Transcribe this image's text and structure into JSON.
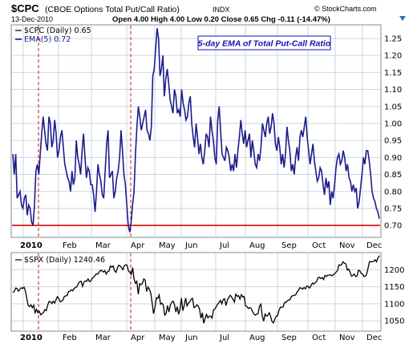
{
  "header": {
    "symbol": "$CPC",
    "name": "(CBOE Options Total Put/Call Ratio)",
    "exchange": "INDX",
    "date": "13-Dec-2010",
    "quote": "Open 4.00  High 4.00  Low 0.20  Close 0.65  Chg -0.11 (-14.47%)",
    "watermark": "© StockCharts.com"
  },
  "chart_data": [
    {
      "type": "line",
      "legend": [
        {
          "label": "$CPC (Daily) 0.65",
          "color": "#000000"
        },
        {
          "label": "EMA(5) 0.72",
          "color": "#1c1c8c"
        }
      ],
      "annotation": "5-day EMA of Total Put-Call Ratio",
      "ylim": [
        0.665,
        1.29
      ],
      "yticks": [
        "0.70",
        "0.75",
        "0.80",
        "0.85",
        "0.90",
        "0.95",
        "1.00",
        "1.05",
        "1.10",
        "1.15",
        "1.20",
        "1.25"
      ],
      "horizontal_line": 0.7,
      "series": [
        {
          "values": [
            0.91,
            0.85,
            0.91,
            0.78,
            0.79,
            0.8,
            0.76,
            0.75,
            0.78,
            0.79,
            0.73,
            0.76,
            0.75,
            0.71,
            0.7,
            0.76,
            0.86,
            0.88,
            0.85,
            0.91,
            0.97,
            1.02,
            0.98,
            0.94,
            0.92,
            1.02,
            1.0,
            0.93,
            0.95,
            1.01,
            0.97,
            0.9,
            0.92,
            0.96,
            0.98,
            0.93,
            0.88,
            0.86,
            0.84,
            0.83,
            0.8,
            0.86,
            0.82,
            0.84,
            0.95,
            0.9,
            0.88,
            0.85,
            0.92,
            0.97,
            0.9,
            0.84,
            0.87,
            0.86,
            0.82,
            0.82,
            0.79,
            0.74,
            0.8,
            0.88,
            0.85,
            0.83,
            0.79,
            0.78,
            0.86,
            0.94,
            0.98,
            0.84,
            0.85,
            0.86,
            0.78,
            0.8,
            0.84,
            0.86,
            0.9,
            0.98,
            0.92,
            0.85,
            0.82,
            0.76,
            0.7,
            0.68,
            0.71,
            0.76,
            0.8,
            0.91,
            0.99,
            1.05,
            1.02,
            0.98,
            1.0,
            1.02,
            1.04,
            0.98,
            0.97,
            0.95,
            0.99,
            1.14,
            1.16,
            1.22,
            1.28,
            1.25,
            1.14,
            1.16,
            1.2,
            1.08,
            1.13,
            1.16,
            1.12,
            1.07,
            1.05,
            1.03,
            1.1,
            1.08,
            1.03,
            1.04,
            1.02,
            1.1,
            1.06,
            1.04,
            1.01,
            1.02,
            1.06,
            1.08,
            1.0,
            0.96,
            0.93,
            1.0,
            0.96,
            0.91,
            0.94,
            0.9,
            0.88,
            0.92,
            0.97,
            0.96,
            0.93,
            1.02,
            0.98,
            0.95,
            0.9,
            0.88,
            1.01,
            1.05,
            0.98,
            0.91,
            0.9,
            0.89,
            0.93,
            0.92,
            0.9,
            0.86,
            0.88,
            0.86,
            0.91,
            0.87,
            0.92,
            0.96,
            1.01,
            0.97,
            0.94,
            0.98,
            0.93,
            0.95,
            0.97,
            0.9,
            0.95,
            0.92,
            0.88,
            0.87,
            0.91,
            0.89,
            0.93,
            1.0,
            0.98,
            0.96,
            1.0,
            1.02,
            0.97,
            0.99,
            1.03,
            1.0,
            0.94,
            0.92,
            0.96,
            0.93,
            0.88,
            0.91,
            0.87,
            0.91,
            0.99,
            0.95,
            0.92,
            0.86,
            0.88,
            0.85,
            0.9,
            0.93,
            0.89,
            0.96,
            0.98,
            0.96,
            0.99,
            1.02,
            0.96,
            0.92,
            0.88,
            0.91,
            0.94,
            0.89,
            0.86,
            0.83,
            0.84,
            0.87,
            0.86,
            0.82,
            0.79,
            0.84,
            0.81,
            0.83,
            0.76,
            0.8,
            0.78,
            0.82,
            0.87,
            0.9,
            0.91,
            0.88,
            0.89,
            0.92,
            0.9,
            0.86,
            0.88,
            0.84,
            0.83,
            0.8,
            0.82,
            0.8,
            0.81,
            0.75,
            0.77,
            0.81,
            0.85,
            0.9,
            0.88,
            0.92,
            0.92,
            0.89,
            0.85,
            0.8,
            0.78,
            0.77,
            0.75,
            0.74,
            0.72
          ]
        }
      ]
    },
    {
      "type": "line",
      "legend": [
        {
          "label": "$SPX (Daily) 1240.46",
          "color": "#000000"
        }
      ],
      "ylim": [
        1020,
        1250
      ],
      "yticks": [
        "1050",
        "1100",
        "1150",
        "1200"
      ],
      "series": [
        {
          "values": [
            1133,
            1136,
            1146,
            1145,
            1137,
            1142,
            1147,
            1145,
            1149,
            1138,
            1116,
            1096,
            1092,
            1097,
            1089,
            1096,
            1074,
            1084,
            1074,
            1078,
            1068,
            1071,
            1075,
            1083,
            1080,
            1096,
            1107,
            1106,
            1101,
            1108,
            1102,
            1112,
            1121,
            1115,
            1106,
            1108,
            1111,
            1122,
            1123,
            1125,
            1136,
            1137,
            1141,
            1138,
            1145,
            1148,
            1150,
            1159,
            1165,
            1166,
            1151,
            1163,
            1167,
            1166,
            1173,
            1165,
            1167,
            1175,
            1178,
            1183,
            1188,
            1187,
            1193,
            1198,
            1197,
            1193,
            1197,
            1187,
            1194,
            1196,
            1211,
            1207,
            1211,
            1197,
            1192,
            1204,
            1213,
            1211,
            1206,
            1200,
            1212,
            1214,
            1213,
            1196,
            1192,
            1186,
            1206,
            1173,
            1160,
            1166,
            1128,
            1159,
            1156,
            1160,
            1173,
            1169,
            1136,
            1149,
            1143,
            1131,
            1102,
            1071,
            1090,
            1118,
            1116,
            1126,
            1099,
            1102,
            1096,
            1067,
            1072,
            1095,
            1076,
            1096,
            1104,
            1108,
            1098,
            1076,
            1092,
            1069,
            1086,
            1117,
            1080,
            1095,
            1117,
            1094,
            1102,
            1106,
            1114,
            1116,
            1089,
            1091,
            1097,
            1094,
            1084,
            1058,
            1074,
            1043,
            1057,
            1069,
            1059,
            1064,
            1064,
            1058,
            1082,
            1085,
            1092,
            1099,
            1104,
            1110,
            1100,
            1113,
            1115,
            1095,
            1111,
            1119,
            1125,
            1120,
            1113,
            1105,
            1128,
            1122,
            1124,
            1114,
            1127,
            1120,
            1122,
            1094,
            1092,
            1086,
            1089,
            1087,
            1078,
            1070,
            1067,
            1070,
            1071,
            1093,
            1099,
            1064,
            1049,
            1070,
            1064,
            1066,
            1074,
            1063,
            1048,
            1044,
            1055,
            1064,
            1065,
            1081,
            1090,
            1090,
            1091,
            1104,
            1104,
            1109,
            1111,
            1113,
            1122,
            1124,
            1125,
            1126,
            1135,
            1140,
            1147,
            1146,
            1143,
            1148,
            1144,
            1152,
            1151,
            1146,
            1154,
            1161,
            1158,
            1162,
            1165,
            1176,
            1178,
            1174,
            1177,
            1171,
            1183,
            1180,
            1184,
            1184,
            1185,
            1182,
            1185,
            1188,
            1193,
            1197,
            1214,
            1213,
            1215,
            1223,
            1219,
            1217,
            1199,
            1202,
            1193,
            1181,
            1183,
            1187,
            1180,
            1181,
            1198,
            1197,
            1189,
            1187,
            1180,
            1181,
            1188,
            1206,
            1224,
            1223,
            1223,
            1225,
            1229,
            1223,
            1234,
            1241
          ]
        }
      ]
    }
  ],
  "x_axis": {
    "months": [
      {
        "label": "2010",
        "bold": true
      },
      {
        "label": "Feb"
      },
      {
        "label": "Mar"
      },
      {
        "label": "Apr"
      },
      {
        "label": "May"
      },
      {
        "label": "Jun"
      },
      {
        "label": "Jul"
      },
      {
        "label": "Aug"
      },
      {
        "label": "Sep"
      },
      {
        "label": "Oct"
      },
      {
        "label": "Nov"
      },
      {
        "label": "Dec"
      }
    ],
    "markers": [
      "Jan 8, 2010",
      "Apr 15, 2010"
    ]
  },
  "colors": {
    "panel_bg": "#ffffff",
    "grid": "#c9d6e6",
    "cpc_line": "#1c1c8c",
    "spx_line": "#000000",
    "threshold_line": "#e01818",
    "marker_line": "#cc1010",
    "annotation_text": "#1515b0",
    "annotation_border": "#1515b0"
  }
}
